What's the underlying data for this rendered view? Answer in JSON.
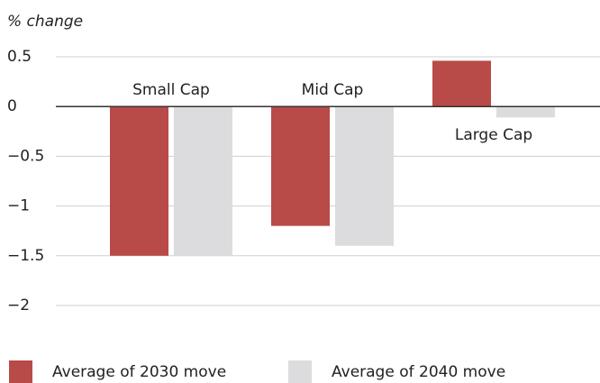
{
  "chart_data": {
    "type": "bar",
    "y_label": "% change",
    "categories": [
      "Small Cap",
      "Mid Cap",
      "Large Cap"
    ],
    "series": [
      {
        "name": "Average of 2030 move",
        "color": "#b84a48",
        "values": [
          -1.5,
          -1.2,
          0.46
        ]
      },
      {
        "name": "Average of 2040 move",
        "color": "#dcdcde",
        "values": [
          -1.5,
          -1.4,
          -0.11
        ]
      }
    ],
    "ylim": [
      -2,
      0.5
    ],
    "yticks": [
      0.5,
      0,
      {
        "value": -0.5,
        "label": "−0.5"
      },
      {
        "value": -1,
        "label": "−1"
      },
      {
        "value": -1.5,
        "label": "−1.5"
      },
      {
        "value": -2,
        "label": "−2"
      }
    ],
    "grid": true
  }
}
